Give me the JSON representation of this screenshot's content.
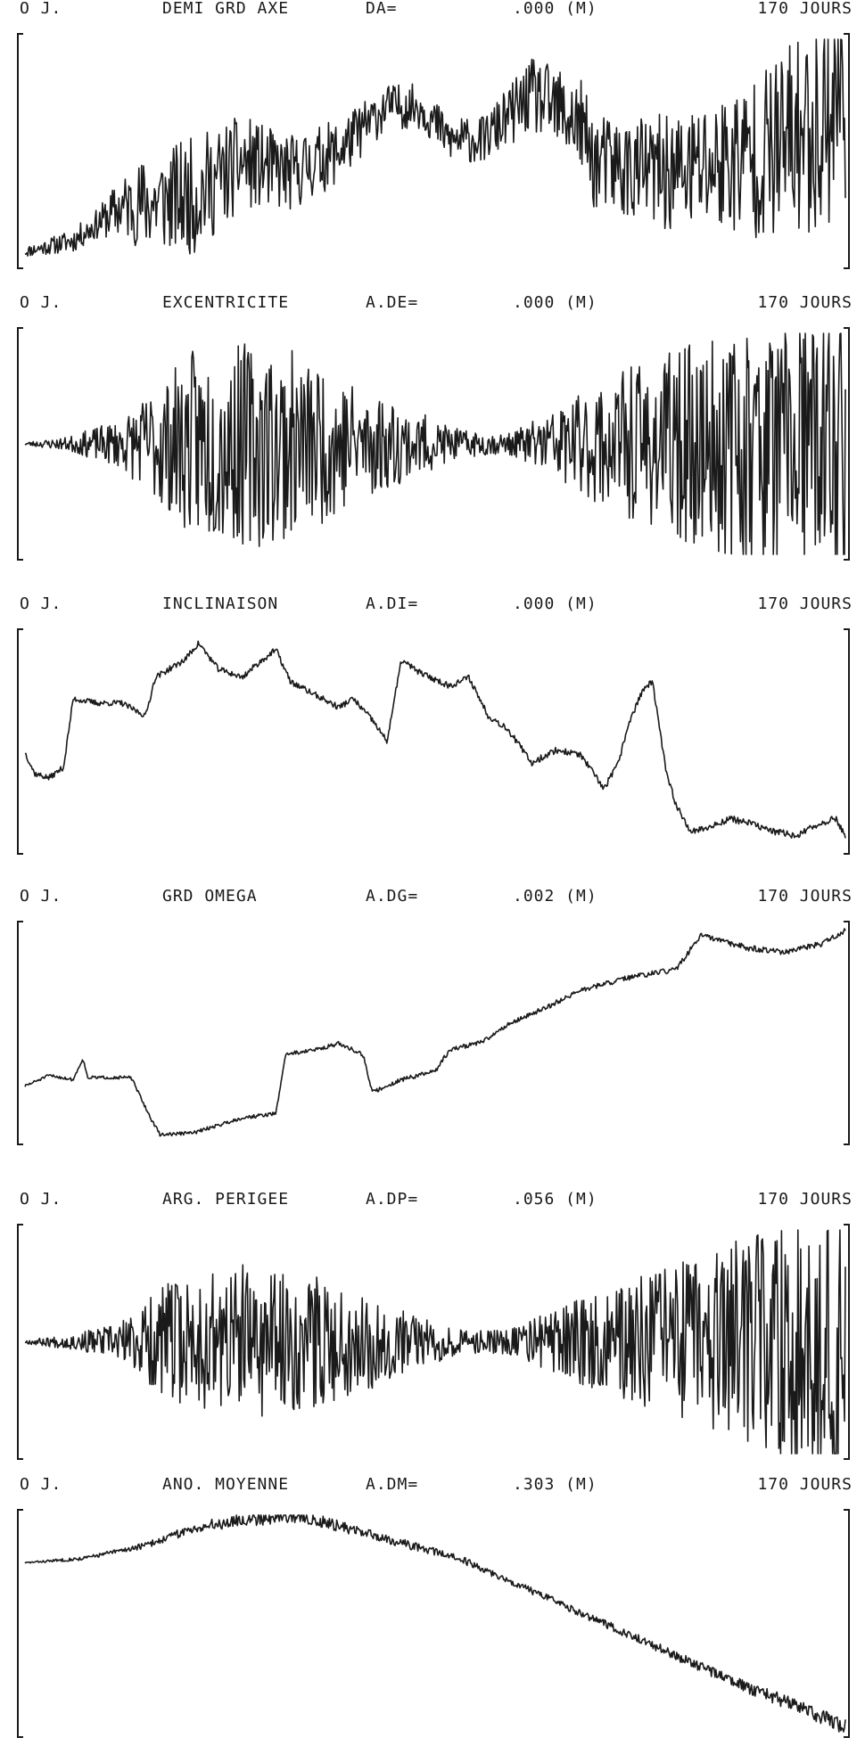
{
  "colors": {
    "ink": "#1a1a1a",
    "background": "#ffffff"
  },
  "chart_data": [
    {
      "type": "line",
      "start_label": "O J.",
      "title": "DEMI GRD AXE",
      "delta_label": "DA=",
      "amplitude": ".000 (M)",
      "end_label": "170 JOURS",
      "xlim": [
        0,
        170
      ],
      "noise_start": 0.3,
      "noise_end": 1.0,
      "noise_seed": 11,
      "trend": [
        [
          0,
          0.05
        ],
        [
          10,
          0.1
        ],
        [
          20,
          0.25
        ],
        [
          35,
          0.3
        ],
        [
          45,
          0.45
        ],
        [
          55,
          0.4
        ],
        [
          65,
          0.5
        ],
        [
          75,
          0.7
        ],
        [
          82,
          0.7
        ],
        [
          88,
          0.55
        ],
        [
          95,
          0.55
        ],
        [
          105,
          0.75
        ],
        [
          115,
          0.62
        ],
        [
          118,
          0.45
        ],
        [
          125,
          0.42
        ],
        [
          135,
          0.4
        ],
        [
          145,
          0.45
        ],
        [
          155,
          0.5
        ],
        [
          163,
          0.6
        ],
        [
          170,
          0.8
        ]
      ],
      "envelope": [
        [
          0,
          0.03
        ],
        [
          15,
          0.08
        ],
        [
          25,
          0.25
        ],
        [
          35,
          0.3
        ],
        [
          50,
          0.2
        ],
        [
          65,
          0.15
        ],
        [
          75,
          0.1
        ],
        [
          95,
          0.1
        ],
        [
          110,
          0.18
        ],
        [
          130,
          0.22
        ],
        [
          150,
          0.3
        ],
        [
          170,
          0.45
        ]
      ]
    },
    {
      "type": "line",
      "start_label": "O J.",
      "title": "EXCENTRICITE",
      "delta_label": "A.DE=",
      "amplitude": ".000 (M)",
      "end_label": "170 JOURS",
      "xlim": [
        0,
        170
      ],
      "noise_start": 0.45,
      "noise_end": 1.0,
      "noise_seed": 23,
      "trend": [
        [
          0,
          0.5
        ],
        [
          170,
          0.5
        ]
      ],
      "envelope": [
        [
          0,
          0.01
        ],
        [
          8,
          0.03
        ],
        [
          20,
          0.12
        ],
        [
          35,
          0.45
        ],
        [
          50,
          0.48
        ],
        [
          62,
          0.35
        ],
        [
          75,
          0.2
        ],
        [
          90,
          0.06
        ],
        [
          100,
          0.04
        ],
        [
          110,
          0.15
        ],
        [
          125,
          0.3
        ],
        [
          140,
          0.4
        ],
        [
          155,
          0.46
        ],
        [
          170,
          0.5
        ]
      ]
    },
    {
      "type": "line",
      "start_label": "O J.",
      "title": "INCLINAISON",
      "delta_label": "A.DI=",
      "amplitude": ".000 (M)",
      "end_label": "170 JOURS",
      "xlim": [
        0,
        170
      ],
      "noise_start": 0.1,
      "noise_end": 0.3,
      "noise_seed": 37,
      "trend": [
        [
          0,
          0.45
        ],
        [
          2,
          0.35
        ],
        [
          5,
          0.33
        ],
        [
          8,
          0.38
        ],
        [
          10,
          0.7
        ],
        [
          15,
          0.68
        ],
        [
          20,
          0.68
        ],
        [
          25,
          0.62
        ],
        [
          27,
          0.8
        ],
        [
          33,
          0.88
        ],
        [
          36,
          0.96
        ],
        [
          40,
          0.84
        ],
        [
          45,
          0.8
        ],
        [
          48,
          0.86
        ],
        [
          52,
          0.93
        ],
        [
          55,
          0.78
        ],
        [
          60,
          0.72
        ],
        [
          65,
          0.66
        ],
        [
          68,
          0.7
        ],
        [
          72,
          0.6
        ],
        [
          75,
          0.5
        ],
        [
          78,
          0.88
        ],
        [
          82,
          0.82
        ],
        [
          88,
          0.76
        ],
        [
          92,
          0.8
        ],
        [
          96,
          0.62
        ],
        [
          100,
          0.56
        ],
        [
          105,
          0.4
        ],
        [
          110,
          0.46
        ],
        [
          115,
          0.44
        ],
        [
          120,
          0.28
        ],
        [
          123,
          0.4
        ],
        [
          125,
          0.58
        ],
        [
          128,
          0.74
        ],
        [
          130,
          0.78
        ],
        [
          133,
          0.34
        ],
        [
          135,
          0.2
        ],
        [
          138,
          0.08
        ],
        [
          142,
          0.1
        ],
        [
          146,
          0.14
        ],
        [
          150,
          0.12
        ],
        [
          155,
          0.08
        ],
        [
          160,
          0.06
        ],
        [
          165,
          0.12
        ],
        [
          168,
          0.14
        ],
        [
          170,
          0.06
        ]
      ],
      "envelope": [
        [
          0,
          0.02
        ],
        [
          170,
          0.02
        ]
      ]
    },
    {
      "type": "line",
      "start_label": "O J.",
      "title": "GRD  OMEGA",
      "delta_label": "A.DG=",
      "amplitude": ".002 (M)",
      "end_label": "170 JOURS",
      "xlim": [
        0,
        170
      ],
      "noise_start": 0.1,
      "noise_end": 0.2,
      "noise_seed": 51,
      "trend": [
        [
          0,
          0.25
        ],
        [
          5,
          0.3
        ],
        [
          10,
          0.28
        ],
        [
          12,
          0.38
        ],
        [
          13,
          0.29
        ],
        [
          22,
          0.29
        ],
        [
          26,
          0.1
        ],
        [
          28,
          0.02
        ],
        [
          35,
          0.03
        ],
        [
          45,
          0.1
        ],
        [
          52,
          0.12
        ],
        [
          54,
          0.4
        ],
        [
          60,
          0.42
        ],
        [
          65,
          0.45
        ],
        [
          70,
          0.4
        ],
        [
          72,
          0.22
        ],
        [
          78,
          0.28
        ],
        [
          85,
          0.32
        ],
        [
          88,
          0.42
        ],
        [
          95,
          0.46
        ],
        [
          100,
          0.54
        ],
        [
          108,
          0.62
        ],
        [
          115,
          0.7
        ],
        [
          125,
          0.76
        ],
        [
          135,
          0.8
        ],
        [
          140,
          0.96
        ],
        [
          150,
          0.9
        ],
        [
          158,
          0.88
        ],
        [
          165,
          0.92
        ],
        [
          170,
          0.98
        ]
      ],
      "envelope": [
        [
          0,
          0.01
        ],
        [
          170,
          0.02
        ]
      ]
    },
    {
      "type": "line",
      "start_label": "O J.",
      "title": "ARG. PERIGEE",
      "delta_label": "A.DP=",
      "amplitude": ".056 (M)",
      "end_label": "170 JOURS",
      "xlim": [
        0,
        170
      ],
      "noise_start": 0.4,
      "noise_end": 1.0,
      "noise_seed": 67,
      "trend": [
        [
          0,
          0.5
        ],
        [
          170,
          0.5
        ]
      ],
      "envelope": [
        [
          0,
          0.01
        ],
        [
          10,
          0.04
        ],
        [
          20,
          0.1
        ],
        [
          30,
          0.3
        ],
        [
          45,
          0.36
        ],
        [
          60,
          0.3
        ],
        [
          75,
          0.18
        ],
        [
          90,
          0.05
        ],
        [
          100,
          0.05
        ],
        [
          110,
          0.14
        ],
        [
          125,
          0.24
        ],
        [
          140,
          0.34
        ],
        [
          155,
          0.42
        ],
        [
          170,
          0.5
        ]
      ]
    },
    {
      "type": "line",
      "start_label": "O J.",
      "title": "ANO. MOYENNE",
      "delta_label": "A.DM=",
      "amplitude": ".303 (M)",
      "end_label": "170 JOURS",
      "xlim": [
        0,
        170
      ],
      "noise_start": 0.15,
      "noise_end": 0.25,
      "noise_seed": 83,
      "trend": [
        [
          0,
          0.78
        ],
        [
          12,
          0.8
        ],
        [
          25,
          0.86
        ],
        [
          35,
          0.94
        ],
        [
          45,
          0.98
        ],
        [
          55,
          1.0
        ],
        [
          60,
          0.98
        ],
        [
          70,
          0.92
        ],
        [
          80,
          0.86
        ],
        [
          90,
          0.8
        ],
        [
          100,
          0.7
        ],
        [
          110,
          0.6
        ],
        [
          120,
          0.5
        ],
        [
          130,
          0.4
        ],
        [
          140,
          0.3
        ],
        [
          150,
          0.2
        ],
        [
          160,
          0.12
        ],
        [
          168,
          0.04
        ],
        [
          170,
          0.02
        ]
      ],
      "envelope": [
        [
          0,
          0.005
        ],
        [
          25,
          0.02
        ],
        [
          50,
          0.05
        ],
        [
          70,
          0.03
        ],
        [
          100,
          0.02
        ],
        [
          140,
          0.03
        ],
        [
          170,
          0.05
        ]
      ]
    }
  ]
}
